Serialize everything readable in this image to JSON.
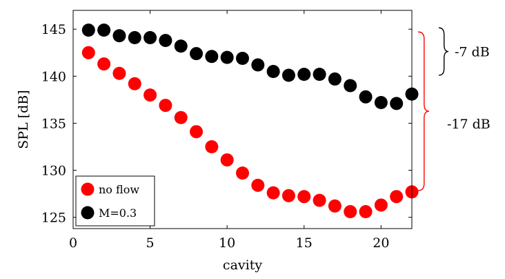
{
  "chart_data": {
    "type": "scatter",
    "title": "",
    "xlabel": "cavity",
    "ylabel": "SPL [dB]",
    "xlim": [
      0,
      22
    ],
    "ylim": [
      123.8,
      147
    ],
    "xticks": [
      0,
      5,
      10,
      15,
      20
    ],
    "yticks": [
      125,
      130,
      135,
      140,
      145
    ],
    "grid": false,
    "legend_position": "bottom-left",
    "series": [
      {
        "name": "no flow",
        "color": "#ff0000",
        "x": [
          1,
          2,
          3,
          4,
          5,
          6,
          7,
          8,
          9,
          10,
          11,
          12,
          13,
          14,
          15,
          16,
          17,
          18,
          19,
          20,
          21,
          22
        ],
        "y": [
          142.5,
          141.3,
          140.3,
          139.2,
          138.0,
          136.9,
          135.6,
          134.1,
          132.5,
          131.1,
          129.7,
          128.4,
          127.6,
          127.3,
          127.2,
          126.8,
          126.2,
          125.6,
          125.6,
          126.3,
          127.2,
          127.7
        ]
      },
      {
        "name": "M=0.3",
        "color": "#000000",
        "x": [
          1,
          2,
          3,
          4,
          5,
          6,
          7,
          8,
          9,
          10,
          11,
          12,
          13,
          14,
          15,
          16,
          17,
          18,
          19,
          20,
          21,
          22
        ],
        "y": [
          144.9,
          144.9,
          144.3,
          144.1,
          144.1,
          143.8,
          143.2,
          142.4,
          142.1,
          142.0,
          141.9,
          141.2,
          140.5,
          140.1,
          140.2,
          140.2,
          139.7,
          139.0,
          137.8,
          137.2,
          137.1,
          138.1
        ]
      }
    ],
    "annotations": [
      {
        "text": "-7 dB",
        "color": "#000000",
        "y_from": 145,
        "y_to": 138.1
      },
      {
        "text": "-17 dB",
        "color": "#ff0000",
        "y_from": 145,
        "y_to": 127.7
      }
    ]
  }
}
